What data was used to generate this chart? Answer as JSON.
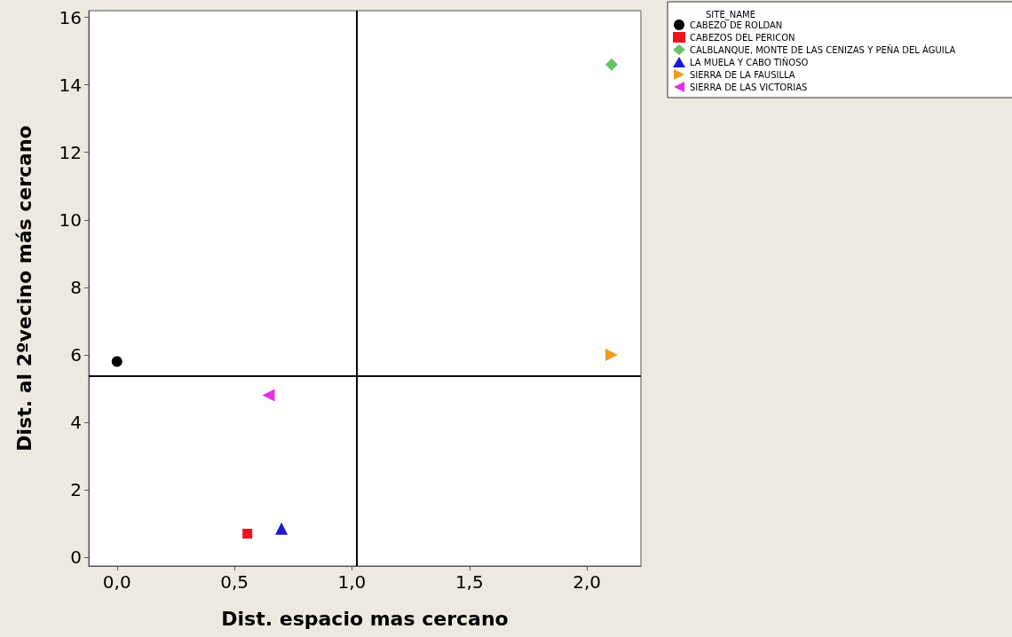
{
  "chart_data": {
    "type": "scatter",
    "xlabel": "Dist. espacio mas cercano",
    "ylabel": "Dist. al 2ºvecino más cercano",
    "legend_title": "SITE_NAME",
    "series": [
      {
        "name": "CABEZO DE ROLDAN",
        "color": "#000000",
        "marker": "circle",
        "x": [
          0.0
        ],
        "values": [
          5.8
        ]
      },
      {
        "name": "CABEZOS DEL PERICON",
        "color": "#e8161b",
        "marker": "square",
        "x": [
          0.555
        ],
        "values": [
          0.7
        ]
      },
      {
        "name": "CALBLANQUE, MONTE DE LAS CENIZAS Y PEÑA DEL ÁGUILA",
        "color": "#66c266",
        "marker": "diamond",
        "x": [
          2.105
        ],
        "values": [
          14.6
        ]
      },
      {
        "name": "LA MUELA Y CABO TIÑOSO",
        "color": "#1a1ad6",
        "marker": "triangle",
        "x": [
          0.7
        ],
        "values": [
          0.85
        ]
      },
      {
        "name": "SIERRA DE LA FAUSILLA",
        "color": "#f29a1d",
        "marker": "triangle-right",
        "x": [
          2.105
        ],
        "values": [
          6.0
        ]
      },
      {
        "name": "SIERRA DE LAS VICTORIAS",
        "color": "#e62ee6",
        "marker": "triangle-left",
        "x": [
          0.645
        ],
        "values": [
          4.8
        ]
      }
    ],
    "xlim": [
      -0.12,
      2.23
    ],
    "xticks": [
      {
        "value": 0,
        "label": "0,0"
      },
      {
        "value": 0.5,
        "label": "0,5"
      },
      {
        "value": 1,
        "label": "1,0"
      },
      {
        "value": 1.5,
        "label": "1,5"
      },
      {
        "value": 2,
        "label": "2,0"
      }
    ],
    "ylim": [
      -0.26,
      16.2
    ],
    "yticks": [
      0,
      2,
      4,
      6,
      8,
      10,
      12,
      14,
      16
    ],
    "ref_lines": [
      {
        "axis": "x",
        "value": 1.02,
        "color": "#000000"
      },
      {
        "axis": "y",
        "value": 5.37,
        "color": "#000000"
      }
    ],
    "grid": false,
    "legend": "top right"
  }
}
